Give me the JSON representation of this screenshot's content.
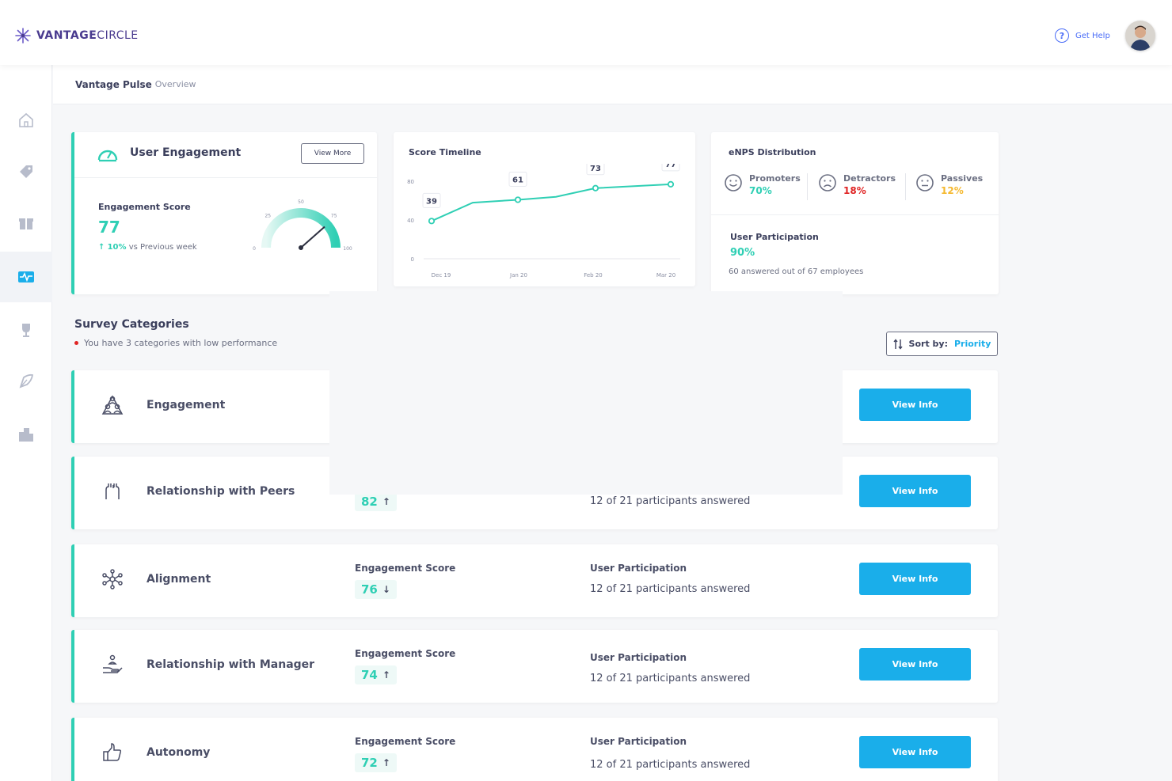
{
  "brand": {
    "name_bold": "VANTAGE",
    "name_light": "CIRCLE"
  },
  "header": {
    "help_label": "Get Help"
  },
  "breadcrumb": {
    "main": "Vantage Pulse",
    "sub": "Overview"
  },
  "user_engagement": {
    "title": "User Engagement",
    "view_more": "View More",
    "score_label": "Engagement Score",
    "score": "77",
    "delta": "10%",
    "delta_suffix": "vs Previous week",
    "gauge_ticks": [
      "0",
      "25",
      "50",
      "75",
      "100"
    ],
    "gauge_value": 77
  },
  "timeline": {
    "title": "Score Timeline"
  },
  "chart_data": {
    "type": "line",
    "title": "Score Timeline",
    "categories": [
      "Dec 19",
      "Jan 20",
      "Feb 20",
      "Mar 20"
    ],
    "x_positions_labels": [
      "Dec 19",
      "Jan 20",
      "Feb 20",
      "Mar 20"
    ],
    "series": [
      {
        "values": [
          39,
          61,
          73,
          77
        ],
        "labeled_points": [
          39,
          61,
          73,
          77
        ]
      }
    ],
    "points": [
      {
        "x": "Dec 19",
        "y": 39,
        "label": "39"
      },
      {
        "x": "",
        "y": 58,
        "label": ""
      },
      {
        "x": "Jan 20",
        "y": 61,
        "label": "61"
      },
      {
        "x": "",
        "y": 64,
        "label": ""
      },
      {
        "x": "Feb 20",
        "y": 73,
        "label": "73"
      },
      {
        "x": "Mar 20",
        "y": 77,
        "label": "77"
      }
    ],
    "yticks": [
      "80",
      "40",
      "0"
    ],
    "ylim": [
      0,
      90
    ],
    "grid": false,
    "line_color": "#2fcfb4"
  },
  "enps": {
    "title": "eNPS Distribution",
    "promoters": {
      "label": "Promoters",
      "value": "70%",
      "color": "#2fcfb4"
    },
    "detractors": {
      "label": "Detractors",
      "value": "18%",
      "color": "#e02424"
    },
    "passives": {
      "label": "Passives",
      "value": "12%",
      "color": "#f5b82e"
    },
    "participation_label": "User Participation",
    "participation_value": "90%",
    "participation_detail": "60 answered out of 67 employees"
  },
  "survey": {
    "title": "Survey Categories",
    "subtitle": "You have 3 categories with low performance",
    "sort_label": "Sort by:",
    "sort_value": "Priority"
  },
  "categories": [
    {
      "name": "Engagement",
      "view": "View Info"
    },
    {
      "name": "Relationship with Peers",
      "score": "82",
      "arrow": "↑",
      "participation": "12 of 21 participants answered",
      "view": "View Info"
    },
    {
      "name": "Alignment",
      "score_label": "Engagement Score",
      "score": "76",
      "arrow": "↓",
      "participation_label": "User Participation",
      "participation": "12 of 21 participants answered",
      "view": "View Info"
    },
    {
      "name": "Relationship with Manager",
      "score_label": "Engagement Score",
      "score": "74",
      "arrow": "↑",
      "participation_label": "User Participation",
      "participation": "12 of 21 participants answered",
      "view": "View Info"
    },
    {
      "name": "Autonomy",
      "score_label": "Engagement Score",
      "score": "72",
      "arrow": "↑",
      "participation_label": "User Participation",
      "participation": "12 of 21 participants answered",
      "view": "View Info"
    }
  ],
  "icons": [
    "home-icon",
    "pulse-icon",
    "gift-icon",
    "activity-icon",
    "trophy-icon",
    "leaf-icon",
    "building-icon"
  ],
  "colors": {
    "accent": "#2fcfb4",
    "primary_button": "#1aaeea",
    "brand": "#4a3b8f"
  }
}
